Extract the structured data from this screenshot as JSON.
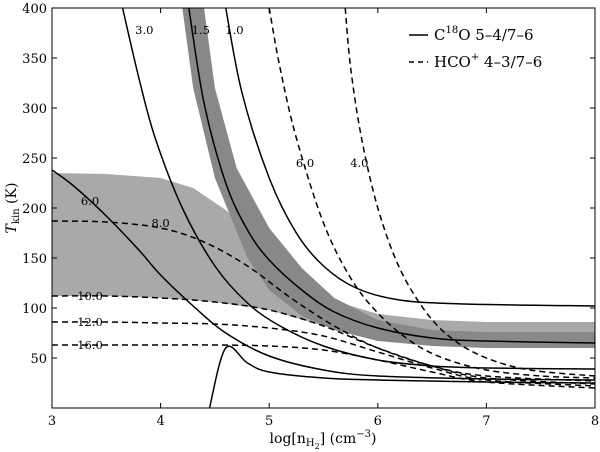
{
  "chart_data": {
    "type": "line",
    "title": "",
    "xlabel": "log[n",
    "xlabel_sub": "H",
    "xlabel_subsub": "2",
    "xlabel_units": "] (cm",
    "xlabel_exp": "−3",
    "xlabel_close": ")",
    "ylabel": "T",
    "ylabel_sub": "kin",
    "ylabel_units": " (K)",
    "xlim": [
      3,
      8
    ],
    "ylim": [
      0,
      400
    ],
    "xticks": [
      "3",
      "4",
      "5",
      "6",
      "7",
      "8"
    ],
    "yticks": [
      "50",
      "100",
      "150",
      "200",
      "250",
      "300",
      "350",
      "400"
    ],
    "legend": {
      "position": "top-right",
      "entries": [
        {
          "style": "solid",
          "prefix": "C",
          "sup": "18",
          "suffix": "O 5–4/7–6"
        },
        {
          "style": "dashed",
          "prefix": "HCO",
          "sup": "+",
          "suffix": " 4–3/7–6"
        }
      ]
    },
    "bands": [
      {
        "name": "c18o-ratio-band",
        "color": "#a9a9a9",
        "opacity": 1,
        "upper": [
          [
            3,
            235
          ],
          [
            3.5,
            234
          ],
          [
            4,
            230
          ],
          [
            4.3,
            220
          ],
          [
            4.6,
            198
          ],
          [
            5,
            160
          ],
          [
            5.3,
            130
          ],
          [
            5.6,
            107
          ],
          [
            6,
            94
          ],
          [
            6.5,
            88
          ],
          [
            7,
            86
          ],
          [
            8,
            86
          ]
        ],
        "lower": [
          [
            3,
            112
          ],
          [
            3.5,
            112
          ],
          [
            4,
            110
          ],
          [
            4.5,
            106
          ],
          [
            5,
            98
          ],
          [
            5.5,
            82
          ],
          [
            6,
            72
          ],
          [
            6.5,
            68
          ],
          [
            7,
            67
          ],
          [
            8,
            67
          ]
        ]
      },
      {
        "name": "hco-ratio-band",
        "color": "#888888",
        "opacity": 1,
        "upper": [
          [
            4.4,
            400
          ],
          [
            4.5,
            320
          ],
          [
            4.7,
            240
          ],
          [
            5,
            180
          ],
          [
            5.3,
            140
          ],
          [
            5.6,
            110
          ],
          [
            6,
            88
          ],
          [
            6.5,
            78
          ],
          [
            7,
            76
          ],
          [
            8,
            76
          ]
        ],
        "lower": [
          [
            4.2,
            400
          ],
          [
            4.3,
            320
          ],
          [
            4.5,
            230
          ],
          [
            4.8,
            150
          ],
          [
            5,
            118
          ],
          [
            5.3,
            92
          ],
          [
            5.6,
            78
          ],
          [
            6,
            67
          ],
          [
            6.5,
            62
          ],
          [
            7,
            60
          ],
          [
            8,
            60
          ]
        ]
      }
    ],
    "series": [
      {
        "name": "C18O 3.0",
        "style": "solid",
        "label": "3.0",
        "label_at": [
          3.85,
          378
        ],
        "points": [
          [
            3.65,
            400
          ],
          [
            3.8,
            330
          ],
          [
            3.95,
            270
          ],
          [
            4.2,
            200
          ],
          [
            4.5,
            142
          ],
          [
            4.8,
            105
          ],
          [
            5.1,
            82
          ],
          [
            5.5,
            62
          ],
          [
            6,
            48
          ],
          [
            6.5,
            42
          ],
          [
            7,
            40
          ],
          [
            8,
            39
          ]
        ]
      },
      {
        "name": "C18O 1.5",
        "style": "solid",
        "label": "1.5",
        "label_at": [
          4.37,
          378
        ],
        "points": [
          [
            4.26,
            400
          ],
          [
            4.4,
            305
          ],
          [
            4.6,
            225
          ],
          [
            4.8,
            178
          ],
          [
            5,
            148
          ],
          [
            5.3,
            118
          ],
          [
            5.6,
            96
          ],
          [
            6,
            80
          ],
          [
            6.5,
            70
          ],
          [
            7,
            67
          ],
          [
            8,
            65
          ]
        ]
      },
      {
        "name": "C18O 1.0",
        "style": "solid",
        "label": "1.0",
        "label_at": [
          4.68,
          378
        ],
        "points": [
          [
            4.6,
            400
          ],
          [
            4.75,
            315
          ],
          [
            5,
            230
          ],
          [
            5.25,
            175
          ],
          [
            5.5,
            142
          ],
          [
            5.8,
            120
          ],
          [
            6.2,
            108
          ],
          [
            6.8,
            104
          ],
          [
            8,
            102
          ]
        ]
      },
      {
        "name": "C18O 6.0",
        "style": "solid",
        "label": "6.0",
        "label_at": [
          3.35,
          207
        ],
        "points": [
          [
            3,
            238
          ],
          [
            3.2,
            222
          ],
          [
            3.5,
            192
          ],
          [
            3.8,
            158
          ],
          [
            4,
            133
          ],
          [
            4.3,
            102
          ],
          [
            4.6,
            75
          ],
          [
            5,
            52
          ],
          [
            5.5,
            38
          ],
          [
            6,
            32
          ],
          [
            7,
            29
          ],
          [
            8,
            28
          ]
        ]
      },
      {
        "name": "C18O low",
        "style": "solid",
        "label": "",
        "points": [
          [
            4.45,
            0
          ],
          [
            4.6,
            60
          ],
          [
            4.8,
            45
          ],
          [
            5,
            36
          ],
          [
            5.5,
            30
          ],
          [
            6,
            28
          ],
          [
            7,
            26
          ],
          [
            8,
            25
          ]
        ]
      },
      {
        "name": "HCO+ 6.0",
        "style": "dashed",
        "label": "6.0",
        "label_at": [
          5.33,
          245
        ],
        "points": [
          [
            5.0,
            400
          ],
          [
            5.1,
            340
          ],
          [
            5.25,
            270
          ],
          [
            5.5,
            185
          ],
          [
            5.75,
            130
          ],
          [
            6,
            95
          ],
          [
            6.3,
            67
          ],
          [
            6.6,
            50
          ],
          [
            7,
            38
          ],
          [
            7.5,
            32
          ],
          [
            8,
            30
          ]
        ]
      },
      {
        "name": "HCO+ 4.0",
        "style": "dashed",
        "label": "4.0",
        "label_at": [
          5.83,
          245
        ],
        "points": [
          [
            5.7,
            400
          ],
          [
            5.75,
            340
          ],
          [
            5.85,
            270
          ],
          [
            6,
            200
          ],
          [
            6.2,
            140
          ],
          [
            6.45,
            95
          ],
          [
            6.7,
            68
          ],
          [
            7,
            50
          ],
          [
            7.4,
            38
          ],
          [
            8,
            32
          ]
        ]
      },
      {
        "name": "HCO+ 8.0",
        "style": "dashed",
        "label": "8.0",
        "label_at": [
          4.0,
          185
        ],
        "points": [
          [
            3,
            187
          ],
          [
            3.5,
            186
          ],
          [
            4,
            180
          ],
          [
            4.4,
            166
          ],
          [
            4.8,
            142
          ],
          [
            5.2,
            110
          ],
          [
            5.6,
            82
          ],
          [
            6,
            60
          ],
          [
            6.5,
            42
          ],
          [
            7,
            32
          ],
          [
            8,
            27
          ]
        ]
      },
      {
        "name": "HCO+ 10.0",
        "style": "dashed",
        "label": "10.0",
        "label_at": [
          3.35,
          112
        ],
        "points": [
          [
            3,
            112
          ],
          [
            3.5,
            112
          ],
          [
            4,
            110
          ],
          [
            4.5,
            106
          ],
          [
            5,
            98
          ],
          [
            5.5,
            82
          ],
          [
            6,
            60
          ],
          [
            6.5,
            42
          ],
          [
            7,
            30
          ],
          [
            8,
            24
          ]
        ]
      },
      {
        "name": "HCO+ 12.0",
        "style": "dashed",
        "label": "12.0",
        "label_at": [
          3.35,
          86
        ],
        "points": [
          [
            3,
            86
          ],
          [
            3.5,
            86
          ],
          [
            4,
            85
          ],
          [
            4.5,
            84
          ],
          [
            5,
            80
          ],
          [
            5.5,
            72
          ],
          [
            6,
            56
          ],
          [
            6.5,
            40
          ],
          [
            7,
            28
          ],
          [
            8,
            22
          ]
        ]
      },
      {
        "name": "HCO+ 16.0",
        "style": "dashed",
        "label": "16.0",
        "label_at": [
          3.35,
          63
        ],
        "points": [
          [
            3,
            63
          ],
          [
            3.5,
            63
          ],
          [
            4,
            63
          ],
          [
            4.5,
            63
          ],
          [
            5,
            62
          ],
          [
            5.5,
            58
          ],
          [
            6,
            48
          ],
          [
            6.5,
            36
          ],
          [
            7,
            26
          ],
          [
            8,
            20
          ]
        ]
      }
    ]
  }
}
